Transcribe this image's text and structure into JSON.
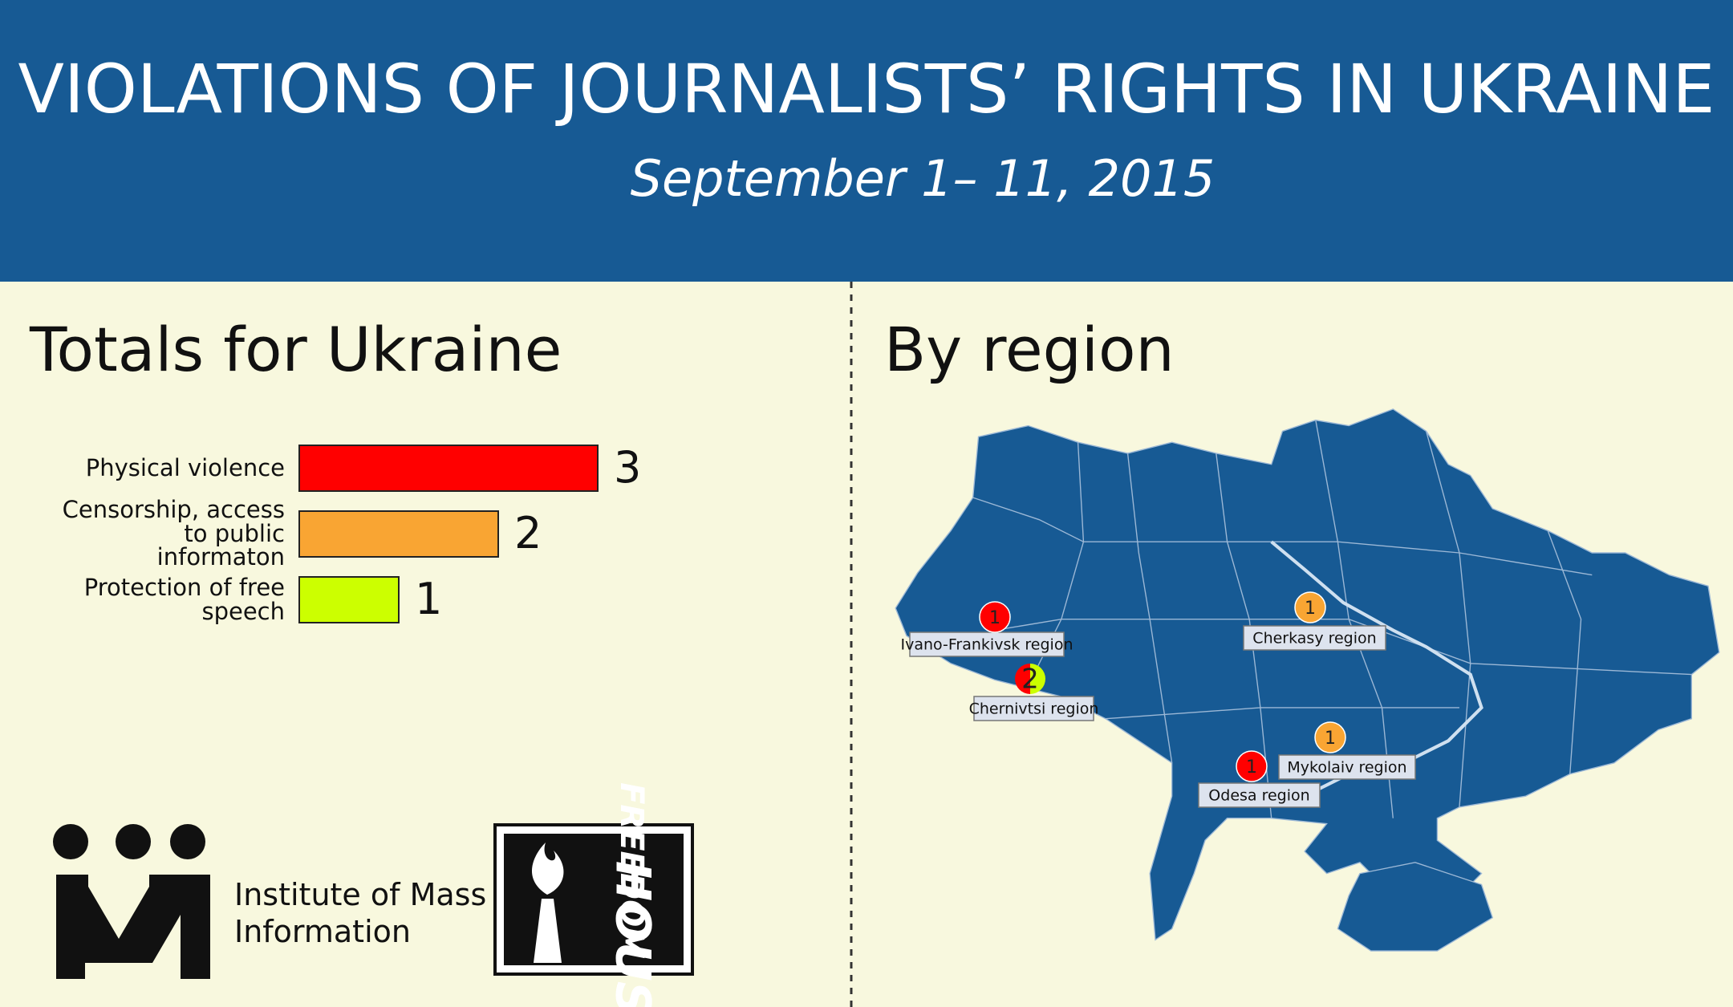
{
  "header": {
    "title": "VIOLATIONS OF JOURNALISTS’ RIGHTS IN UKRAINE",
    "subtitle": "September 1– 11, 2015"
  },
  "chart_data": {
    "type": "bar",
    "orientation": "horizontal",
    "title": "Totals for Ukraine",
    "categories": [
      "Physical violence",
      "Censorship, access to public informaton",
      "Protection of free speech"
    ],
    "values": [
      3,
      2,
      1
    ],
    "colors": [
      "#ff0000",
      "#f9a533",
      "#ccff00"
    ]
  },
  "map": {
    "title": "By region",
    "regions": [
      {
        "name": "Ivano-Frankivsk region",
        "count": 1,
        "colors": [
          "#ff0000"
        ]
      },
      {
        "name": "Chernivtsi region",
        "count": 2,
        "colors": [
          "#ff0000",
          "#ccff00"
        ]
      },
      {
        "name": "Cherkasy region",
        "count": 1,
        "colors": [
          "#f9a533"
        ]
      },
      {
        "name": "Mykolaiv region",
        "count": 1,
        "colors": [
          "#f9a533"
        ]
      },
      {
        "name": "Odesa region",
        "count": 1,
        "colors": [
          "#ff0000"
        ]
      }
    ]
  },
  "logos": {
    "imi": "Institute of Mass Information",
    "freedom_house": [
      "FREEDOM",
      "HOUSE"
    ]
  }
}
